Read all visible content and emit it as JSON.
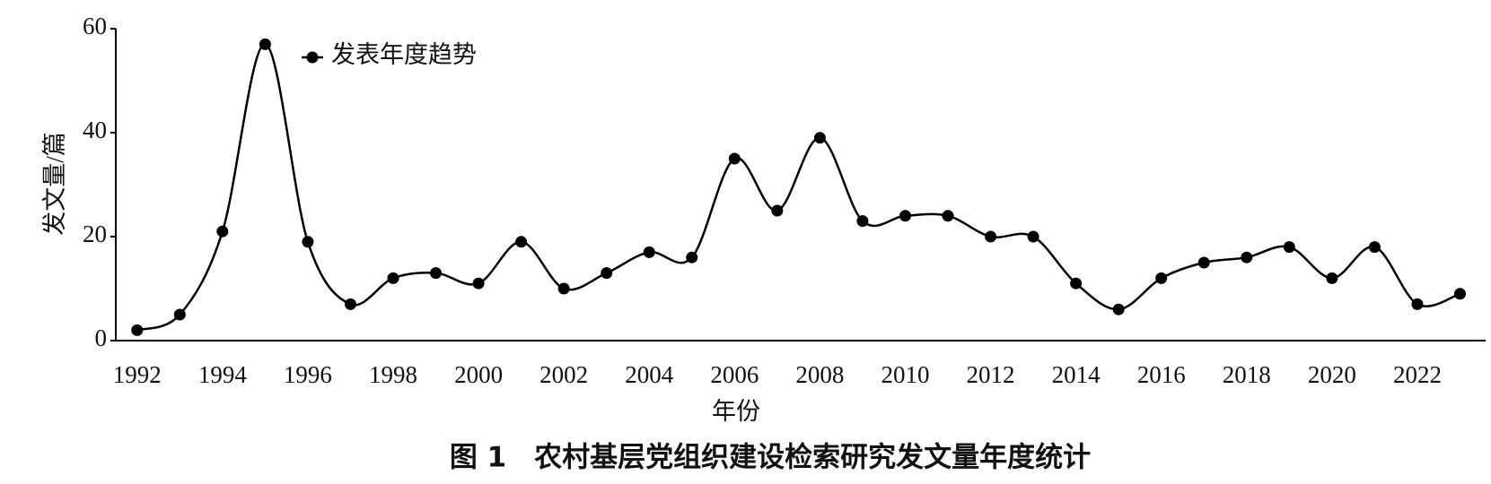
{
  "chart_data": {
    "type": "line",
    "smooth": true,
    "grid": false,
    "caption": "图 1　农村基层党组织建设检索研究发文量年度统计",
    "x_label": "年份",
    "y_label": "发文量/篇",
    "x": [
      1992,
      1993,
      1994,
      1995,
      1996,
      1997,
      1998,
      1999,
      2000,
      2001,
      2002,
      2003,
      2004,
      2005,
      2006,
      2007,
      2008,
      2009,
      2010,
      2011,
      2012,
      2013,
      2014,
      2015,
      2016,
      2017,
      2018,
      2019,
      2020,
      2021,
      2022,
      2023
    ],
    "series": [
      {
        "name": "发表年度趋势",
        "color": "#000000",
        "values": [
          2,
          5,
          21,
          57,
          19,
          7,
          12,
          13,
          11,
          19,
          10,
          13,
          17,
          16,
          35,
          25,
          39,
          23,
          24,
          24,
          20,
          20,
          11,
          6,
          12,
          15,
          16,
          18,
          12,
          18,
          7,
          9
        ]
      }
    ],
    "xlim": [
      1991.5,
      2023.6
    ],
    "xticks": [
      1992,
      1994,
      1996,
      1998,
      2000,
      2002,
      2004,
      2006,
      2008,
      2010,
      2012,
      2014,
      2016,
      2018,
      2020,
      2022
    ],
    "ylim": [
      0,
      60
    ],
    "yticks": [
      0,
      20,
      40,
      60
    ],
    "legend": "top-left"
  }
}
